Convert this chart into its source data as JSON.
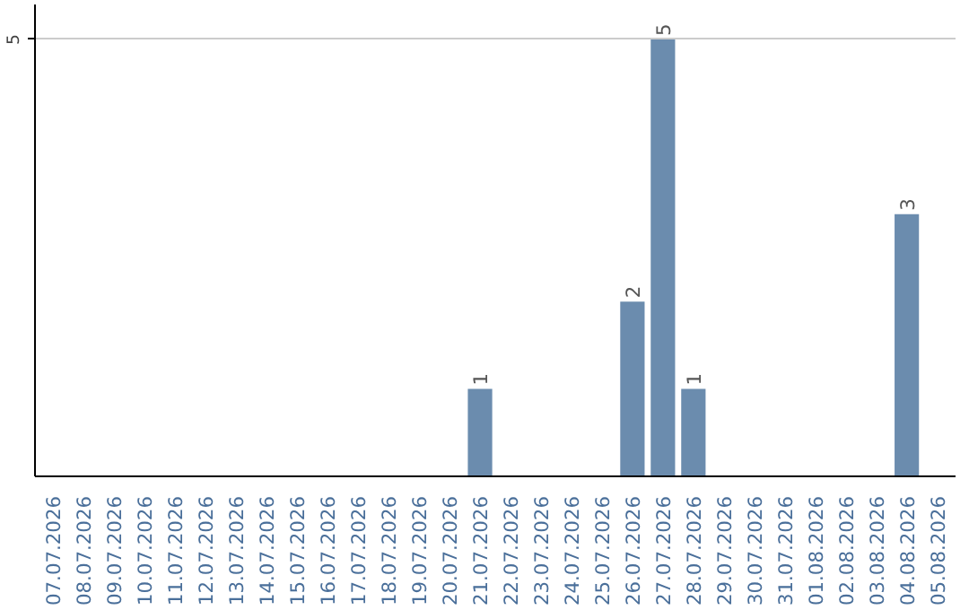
{
  "chart_data": {
    "type": "bar",
    "categories": [
      "07.07.2026",
      "08.07.2026",
      "09.07.2026",
      "10.07.2026",
      "11.07.2026",
      "12.07.2026",
      "13.07.2026",
      "14.07.2026",
      "15.07.2026",
      "16.07.2026",
      "17.07.2026",
      "18.07.2026",
      "19.07.2026",
      "20.07.2026",
      "21.07.2026",
      "22.07.2026",
      "23.07.2026",
      "24.07.2026",
      "25.07.2026",
      "26.07.2026",
      "27.07.2026",
      "28.07.2026",
      "29.07.2026",
      "30.07.2026",
      "31.07.2026",
      "01.08.2026",
      "02.08.2026",
      "03.08.2026",
      "04.08.2026",
      "05.08.2026"
    ],
    "values": [
      null,
      null,
      null,
      null,
      null,
      null,
      null,
      null,
      null,
      null,
      null,
      null,
      null,
      null,
      1,
      null,
      null,
      null,
      null,
      2,
      5,
      1,
      null,
      null,
      null,
      null,
      null,
      null,
      3,
      null
    ],
    "ylim": [
      0,
      5.4
    ],
    "yticks": [
      5
    ],
    "grid": "y",
    "value_labels": [
      null,
      null,
      null,
      null,
      null,
      null,
      null,
      null,
      null,
      null,
      null,
      null,
      null,
      null,
      "1",
      null,
      null,
      null,
      null,
      "2",
      "5",
      "1",
      null,
      null,
      null,
      null,
      null,
      null,
      "3",
      null
    ],
    "color": "#6b8cae"
  }
}
